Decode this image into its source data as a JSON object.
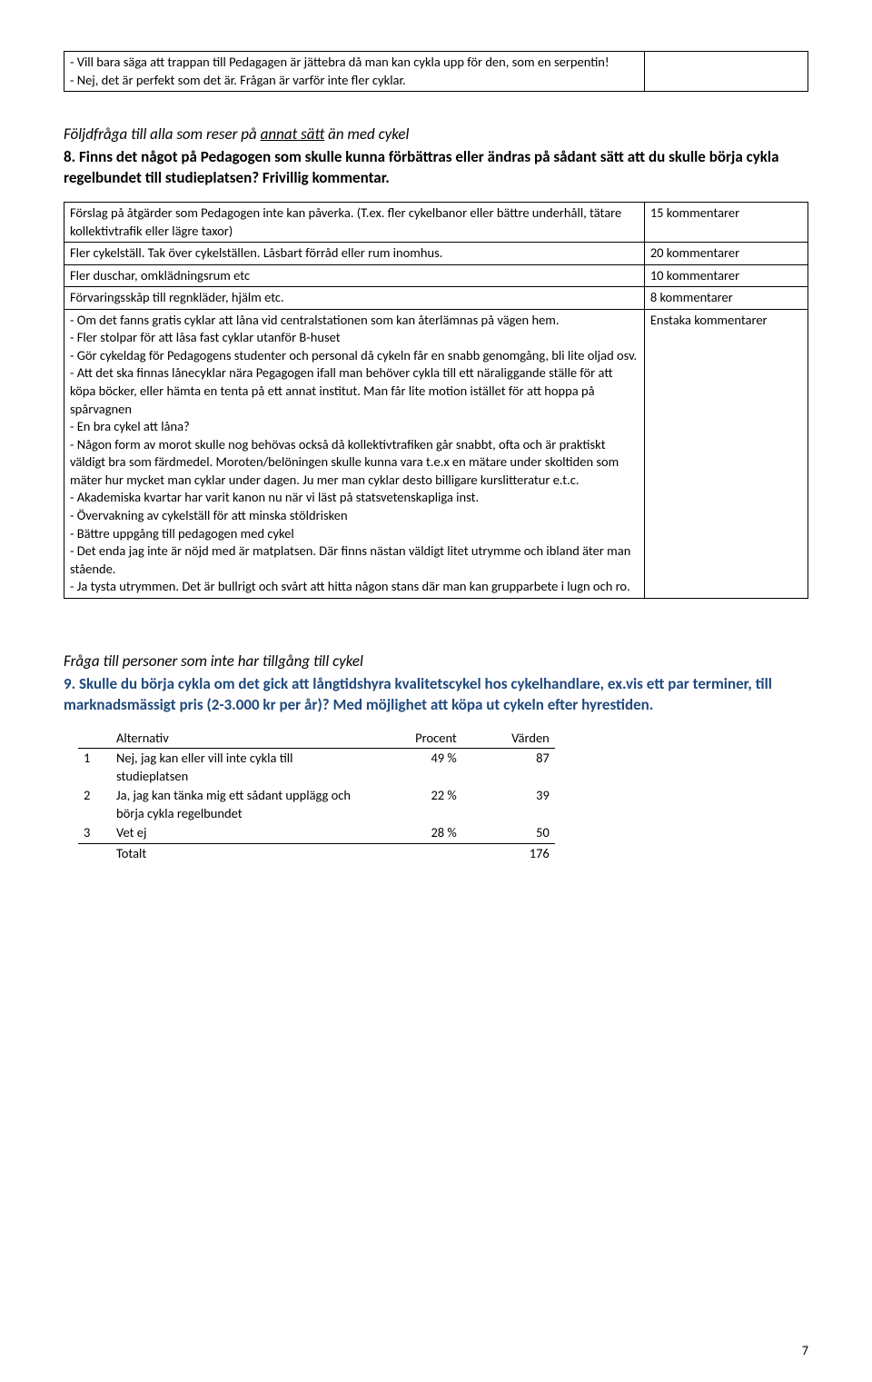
{
  "topTable": {
    "col1": "- Vill bara säga att trappan till Pedagagen är jättebra då man kan cykla upp för den, som en serpentin!\n- Nej, det är perfekt som det är. Frågan är varför inte fler cyklar.",
    "col2": ""
  },
  "q8": {
    "lead": "Följdfråga till alla som reser på",
    "underlined": "annat sätt",
    "lead2": " än med cykel",
    "question": "8. Finns det något på Pedagogen som skulle kunna förbättras eller ändras på sådant sätt att du skulle börja cykla regelbundet till studieplatsen? Frivillig kommentar.",
    "rows": [
      {
        "c1": "Förslag på åtgärder som Pedagogen inte kan påverka. (T.ex. fler cykelbanor eller bättre underhåll, tätare kollektivtrafik eller lägre taxor)",
        "c2": "15 kommentarer"
      },
      {
        "c1": "Fler cykelställ. Tak över cykelställen. Låsbart förråd eller rum inomhus.",
        "c2": "20 kommentarer"
      },
      {
        "c1": "Fler duschar, omklädningsrum etc",
        "c2": "10 kommentarer"
      },
      {
        "c1": "Förvaringsskåp till regnkläder, hjälm etc.",
        "c2": "8 kommentarer"
      },
      {
        "c1": "- Om det fanns gratis cyklar att låna vid centralstationen som kan återlämnas på vägen hem.\n- Fler stolpar för att låsa fast cyklar utanför B-huset\n- Gör cykeldag för Pedagogens studenter och personal då cykeln får en snabb genomgång, bli lite oljad osv.\n- Att det ska finnas lånecyklar nära Pegagogen ifall man behöver cykla till ett näraliggande ställe för att köpa böcker, eller hämta en tenta på ett annat institut. Man får lite motion istället för att hoppa på spårvagnen\n- En bra cykel att låna?\n- Någon form av morot skulle nog behövas också då kollektivtrafiken går snabbt, ofta och är praktiskt väldigt bra som färdmedel. Moroten/belöningen skulle kunna vara t.e.x en mätare under skoltiden som mäter hur mycket man cyklar under dagen. Ju mer man cyklar desto billigare kurslitteratur e.t.c.\n- Akademiska kvartar har varit kanon nu när vi läst på statsvetenskapliga inst.\n- Övervakning av cykelställ för att minska stöldrisken\n- Bättre uppgång till pedagogen med cykel\n- Det enda jag inte är nöjd med är matplatsen. Där finns nästan väldigt litet utrymme och ibland äter man stående.\n- Ja tysta utrymmen. Det är bullrigt och svårt att hitta någon stans där man kan grupparbete i lugn och ro.",
        "c2": "Enstaka kommentarer"
      }
    ]
  },
  "q9": {
    "lead": "Fråga till personer som inte har tillgång till cykel",
    "question": "9. Skulle du börja cykla om det gick att långtidshyra kvalitetscykel hos cykelhandlare, ex.vis ett par terminer, till marknadsmässigt pris (2-3.000 kr per år)? Med möjlighet att köpa ut cykeln efter hyrestiden.",
    "headers": {
      "alt": "Alternativ",
      "pc": "Procent",
      "va": "Värden"
    },
    "rows": [
      {
        "idx": "1",
        "lbl": "Nej, jag kan eller vill inte cykla till studieplatsen",
        "pc": "49 %",
        "va": "87"
      },
      {
        "idx": "2",
        "lbl": "Ja, jag kan tänka mig ett sådant upplägg och börja cykla regelbundet",
        "pc": "22 %",
        "va": "39"
      },
      {
        "idx": "3",
        "lbl": "Vet ej",
        "pc": "28 %",
        "va": "50"
      }
    ],
    "total": {
      "lbl": "Totalt",
      "va": "176"
    }
  },
  "pageNumber": "7"
}
